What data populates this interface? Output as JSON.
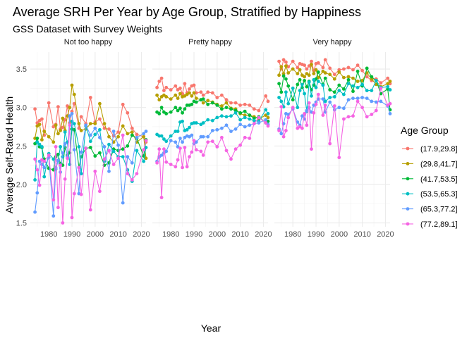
{
  "chart_data": {
    "type": "line",
    "title": "Average SRH Per Year by Age Group, Stratified by Happiness",
    "subtitle": "GSS Dataset with Survey Weights",
    "xlabel": "Year",
    "ylabel": "Average Self-Rated Health",
    "xlim": [
      1972,
      2022
    ],
    "ylim": [
      1.45,
      3.72
    ],
    "x_ticks": [
      1980,
      1990,
      2000,
      2010,
      2020
    ],
    "y_ticks": [
      1.5,
      2.0,
      2.5,
      3.0,
      3.5
    ],
    "x_tick_labels": [
      "1980",
      "1990",
      "2000",
      "2010",
      "2020"
    ],
    "y_tick_labels": [
      "1.5",
      "2.0",
      "2.5",
      "3.0",
      "3.5"
    ],
    "grid": true,
    "legend": {
      "title": "Age Group",
      "position": "right",
      "entries": [
        "(17.9,29.8]",
        "(29.8,41.7]",
        "(41.7,53.5]",
        "(53.5,65.3]",
        "(65.3,77.2]",
        "(77.2,89.1]"
      ]
    },
    "colors": [
      "#F8766D",
      "#B79F00",
      "#00BA38",
      "#00BFC4",
      "#619CFF",
      "#F564E3"
    ],
    "years": [
      1974,
      1975,
      1976,
      1977,
      1978,
      1980,
      1982,
      1983,
      1984,
      1985,
      1986,
      1987,
      1988,
      1989,
      1990,
      1991,
      1993,
      1994,
      1996,
      1998,
      2000,
      2002,
      2004,
      2006,
      2008,
      2010,
      2012,
      2014,
      2016,
      2018,
      2021,
      2022
    ],
    "panels": [
      {
        "label": "Not too happy",
        "series": [
          {
            "values": [
              2.98,
              2.8,
              2.83,
              2.85,
              2.64,
              3.06,
              2.75,
              2.78,
              3.01,
              2.72,
              2.74,
              2.84,
              3.02,
              2.8,
              2.95,
              3.05,
              2.73,
              2.88,
              2.79,
              3.13,
              2.81,
              2.85,
              2.73,
              2.72,
              2.63,
              2.68,
              3.04,
              2.93,
              2.73,
              2.65,
              2.62,
              2.55
            ]
          },
          {
            "values": [
              2.6,
              2.76,
              2.78,
              2.58,
              2.69,
              2.62,
              2.55,
              2.77,
              2.66,
              2.7,
              2.86,
              2.7,
              2.89,
              3.0,
              3.29,
              3.17,
              2.79,
              2.7,
              2.72,
              2.79,
              2.79,
              3.05,
              2.79,
              2.62,
              2.55,
              2.62,
              2.76,
              2.66,
              2.68,
              2.55,
              2.62,
              2.34
            ]
          },
          {
            "values": [
              2.53,
              2.6,
              2.49,
              2.48,
              2.33,
              2.21,
              2.19,
              2.36,
              2.39,
              2.27,
              2.25,
              2.48,
              2.38,
              2.41,
              2.72,
              2.71,
              2.22,
              2.36,
              2.47,
              2.48,
              2.37,
              2.41,
              2.25,
              2.28,
              2.46,
              2.44,
              2.46,
              2.5,
              2.64,
              2.6,
              2.37,
              2.58
            ]
          },
          {
            "values": [
              2.06,
              2.55,
              2.52,
              2.49,
              2.1,
              2.4,
              2.33,
              2.2,
              2.31,
              2.49,
              2.36,
              2.68,
              2.55,
              2.26,
              2.82,
              2.79,
              2.49,
              2.14,
              2.76,
              2.56,
              2.65,
              2.71,
              2.3,
              2.52,
              2.43,
              2.36,
              2.36,
              2.19,
              2.04,
              2.44,
              2.3,
              2.48
            ]
          },
          {
            "values": [
              1.64,
              1.89,
              2.3,
              2.26,
              2.22,
              2.35,
              1.59,
              2.22,
              2.31,
              2.16,
              2.41,
              2.53,
              2.36,
              2.89,
              2.92,
              2.45,
              1.88,
              2.42,
              2.77,
              2.64,
              2.73,
              2.61,
              2.49,
              2.17,
              2.69,
              2.51,
              1.76,
              2.36,
              2.28,
              2.61,
              2.66,
              2.69
            ]
          },
          {
            "values": [
              2.33,
              2.19,
              1.99,
              2.32,
              2.3,
              2.38,
              1.8,
              2.49,
              1.7,
              2.25,
              1.5,
              2.07,
              2.34,
              2.77,
              1.57,
              1.88,
              2.22,
              1.87,
              2.47,
              1.67,
              2.17,
              1.91,
              2.33,
              2.44,
              2.26,
              2.34,
              2.64,
              2.14,
              2.06,
              2.14,
              2.45,
              2.57
            ]
          }
        ]
      },
      {
        "label": "Pretty happy",
        "series": [
          {
            "values": [
              3.26,
              3.34,
              3.38,
              3.22,
              3.26,
              3.23,
              3.28,
              3.23,
              3.25,
              3.18,
              3.31,
              3.19,
              3.24,
              3.28,
              3.29,
              3.19,
              3.2,
              3.16,
              3.2,
              3.19,
              3.13,
              3.16,
              3.1,
              3.06,
              3.06,
              3.03,
              3.04,
              3.03,
              2.98,
              2.96,
              3.15,
              3.08
            ]
          },
          {
            "values": [
              3.16,
              3.1,
              3.14,
              3.16,
              3.14,
              3.11,
              3.16,
              3.12,
              3.18,
              3.14,
              3.15,
              3.17,
              3.19,
              3.15,
              3.19,
              3.12,
              3.1,
              3.06,
              3.09,
              3.07,
              3.04,
              3.02,
              3.06,
              2.99,
              2.98,
              2.92,
              2.9,
              2.9,
              2.88,
              2.85,
              2.9,
              2.87
            ]
          },
          {
            "values": [
              2.94,
              2.92,
              3.0,
              2.94,
              2.92,
              2.94,
              3.0,
              2.96,
              2.99,
              2.93,
              2.98,
              3.03,
              3.03,
              3.04,
              3.08,
              3.07,
              3.1,
              3.11,
              3.04,
              3.06,
              3.03,
              2.98,
              3.0,
              2.98,
              2.96,
              2.93,
              2.95,
              2.9,
              2.86,
              2.88,
              2.8,
              2.82
            ]
          },
          {
            "values": [
              2.65,
              2.63,
              2.63,
              2.59,
              2.56,
              2.63,
              2.69,
              2.69,
              2.81,
              2.82,
              2.7,
              2.71,
              2.74,
              2.79,
              2.8,
              2.8,
              2.78,
              2.8,
              2.84,
              2.83,
              2.87,
              2.89,
              2.88,
              2.89,
              2.93,
              2.84,
              2.87,
              2.85,
              2.83,
              2.82,
              2.97,
              2.92
            ]
          },
          {
            "values": [
              2.3,
              2.36,
              2.38,
              2.41,
              2.43,
              2.57,
              2.55,
              2.49,
              2.6,
              2.55,
              2.61,
              2.63,
              2.62,
              2.64,
              2.53,
              2.55,
              2.62,
              2.62,
              2.62,
              2.7,
              2.71,
              2.73,
              2.77,
              2.69,
              2.72,
              2.78,
              2.75,
              2.77,
              2.79,
              2.8,
              2.84,
              2.78
            ]
          },
          {
            "values": [
              2.28,
              2.46,
              1.83,
              2.46,
              2.29,
              2.26,
              2.23,
              2.32,
              2.47,
              2.22,
              2.48,
              2.23,
              2.36,
              2.42,
              2.57,
              2.45,
              2.43,
              2.38,
              2.55,
              2.56,
              2.49,
              2.61,
              2.44,
              2.33,
              2.46,
              2.51,
              2.61,
              2.6,
              2.79,
              2.87,
              2.8,
              2.76
            ]
          }
        ]
      },
      {
        "label": "Very happy",
        "series": [
          {
            "values": [
              3.6,
              3.5,
              3.62,
              3.59,
              3.53,
              3.6,
              3.52,
              3.57,
              3.56,
              3.55,
              3.5,
              3.54,
              3.6,
              3.48,
              3.57,
              3.58,
              3.52,
              3.62,
              3.51,
              3.43,
              3.49,
              3.5,
              3.52,
              3.49,
              3.55,
              3.48,
              3.4,
              3.35,
              3.37,
              3.32,
              3.38,
              3.31
            ]
          },
          {
            "values": [
              3.42,
              3.53,
              3.44,
              3.54,
              3.45,
              3.5,
              3.44,
              3.49,
              3.42,
              3.4,
              3.44,
              3.42,
              3.56,
              3.44,
              3.49,
              3.39,
              3.47,
              3.45,
              3.43,
              3.37,
              3.46,
              3.39,
              3.4,
              3.38,
              3.34,
              3.35,
              3.45,
              3.37,
              3.3,
              3.27,
              3.31,
              3.34
            ]
          },
          {
            "values": [
              3.31,
              3.2,
              3.41,
              3.37,
              3.28,
              3.1,
              3.3,
              3.36,
              3.26,
              3.35,
              3.27,
              3.34,
              3.23,
              3.29,
              3.37,
              3.46,
              3.3,
              3.38,
              3.23,
              3.2,
              3.29,
              3.24,
              3.36,
              3.21,
              3.47,
              3.28,
              3.51,
              3.4,
              3.35,
              3.18,
              3.24,
              2.97
            ]
          },
          {
            "values": [
              3.13,
              3.08,
              3.01,
              3.2,
              3.05,
              3.25,
              3.0,
              3.22,
              3.3,
              3.18,
              2.95,
              3.33,
              3.15,
              3.36,
              3.26,
              3.34,
              3.29,
              3.08,
              3.13,
              3.14,
              3.22,
              3.17,
              3.31,
              3.28,
              3.26,
              3.3,
              3.22,
              3.22,
              3.35,
              3.26,
              3.27,
              3.23
            ]
          },
          {
            "values": [
              2.72,
              2.66,
              2.79,
              2.92,
              2.91,
              2.98,
              2.81,
              2.77,
              2.89,
              2.85,
              2.96,
              3.0,
              2.94,
              3.03,
              3.07,
              3.11,
              3.11,
              2.94,
              3.07,
              2.97,
              3.0,
              2.99,
              3.1,
              3.12,
              3.12,
              3.13,
              3.12,
              3.08,
              3.07,
              3.08,
              3.02,
              2.92
            ]
          },
          {
            "values": [
              2.7,
              3.01,
              2.62,
              2.7,
              2.87,
              3.0,
              2.73,
              2.75,
              2.73,
              2.92,
              2.77,
              3.06,
              2.46,
              2.93,
              3.04,
              3.17,
              2.9,
              3.03,
              2.53,
              3.02,
              2.35,
              2.85,
              2.88,
              2.89,
              3.08,
              3.0,
              2.88,
              2.91,
              2.96,
              3.25,
              3.03,
              3.05
            ]
          }
        ]
      }
    ]
  }
}
